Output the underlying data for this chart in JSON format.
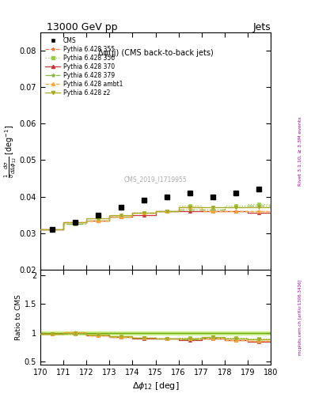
{
  "title_top": "13000 GeV pp",
  "title_right": "Jets",
  "plot_title": "Δφ(jj) (CMS back-to-back jets)",
  "xlabel": "Δφ₁₂ [deg]",
  "ylabel_ratio": "Ratio to CMS",
  "right_label_main": "Rivet 3.1.10, ≥ 3.3M events",
  "right_label_ratio": "mcplots.cern.ch [arXiv:1306.3436]",
  "watermark": "CMS_2019_I1719955",
  "xlim": [
    170,
    180
  ],
  "ylim_main": [
    0.02,
    0.085
  ],
  "ylim_ratio": [
    0.45,
    2.1
  ],
  "yticks_main": [
    0.02,
    0.03,
    0.04,
    0.05,
    0.06,
    0.07,
    0.08
  ],
  "yticks_ratio": [
    0.5,
    1.0,
    1.5,
    2.0
  ],
  "cms_x": [
    170.5,
    171.5,
    172.5,
    173.5,
    174.5,
    175.5,
    176.5,
    177.5,
    178.5,
    179.5
  ],
  "cms_y": [
    0.031,
    0.033,
    0.035,
    0.037,
    0.039,
    0.04,
    0.041,
    0.04,
    0.041,
    0.042
  ],
  "p355_y": [
    0.031,
    0.033,
    0.0335,
    0.0345,
    0.0355,
    0.036,
    0.037,
    0.036,
    0.036,
    0.036
  ],
  "p356_y": [
    0.031,
    0.0325,
    0.034,
    0.0345,
    0.0355,
    0.036,
    0.0375,
    0.037,
    0.0375,
    0.038
  ],
  "p370_y": [
    0.031,
    0.033,
    0.0335,
    0.0345,
    0.035,
    0.036,
    0.036,
    0.036,
    0.036,
    0.0355
  ],
  "p379_y": [
    0.031,
    0.0325,
    0.0335,
    0.0345,
    0.0355,
    0.036,
    0.0365,
    0.0365,
    0.037,
    0.0375
  ],
  "pambt1_y": [
    0.031,
    0.033,
    0.0335,
    0.0345,
    0.0355,
    0.036,
    0.037,
    0.036,
    0.036,
    0.036
  ],
  "pz2_y": [
    0.031,
    0.033,
    0.034,
    0.035,
    0.0355,
    0.036,
    0.037,
    0.037,
    0.037,
    0.037
  ],
  "color_355": "#e87b4b",
  "color_356": "#99cc44",
  "color_370": "#cc3333",
  "color_379": "#88bb44",
  "color_ambt1": "#ffaa33",
  "color_z2": "#aaaa22",
  "color_cms": "#000000",
  "color_ratio_band": "#ccee88",
  "ratio_355": [
    0.98,
    1.005,
    0.955,
    0.935,
    0.91,
    0.9,
    0.9,
    0.9,
    0.875,
    0.857
  ],
  "ratio_356": [
    0.98,
    0.985,
    0.972,
    0.932,
    0.91,
    0.9,
    0.915,
    0.925,
    0.915,
    0.905
  ],
  "ratio_370": [
    0.98,
    1.0,
    0.957,
    0.932,
    0.897,
    0.9,
    0.878,
    0.9,
    0.878,
    0.845
  ],
  "ratio_379": [
    0.98,
    0.985,
    0.957,
    0.932,
    0.91,
    0.9,
    0.893,
    0.912,
    0.902,
    0.893
  ],
  "ratio_ambt1": [
    0.98,
    1.005,
    0.957,
    0.932,
    0.91,
    0.9,
    0.902,
    0.9,
    0.878,
    0.857
  ],
  "ratio_z2": [
    0.98,
    1.0,
    0.972,
    0.946,
    0.91,
    0.9,
    0.902,
    0.925,
    0.902,
    0.881
  ]
}
